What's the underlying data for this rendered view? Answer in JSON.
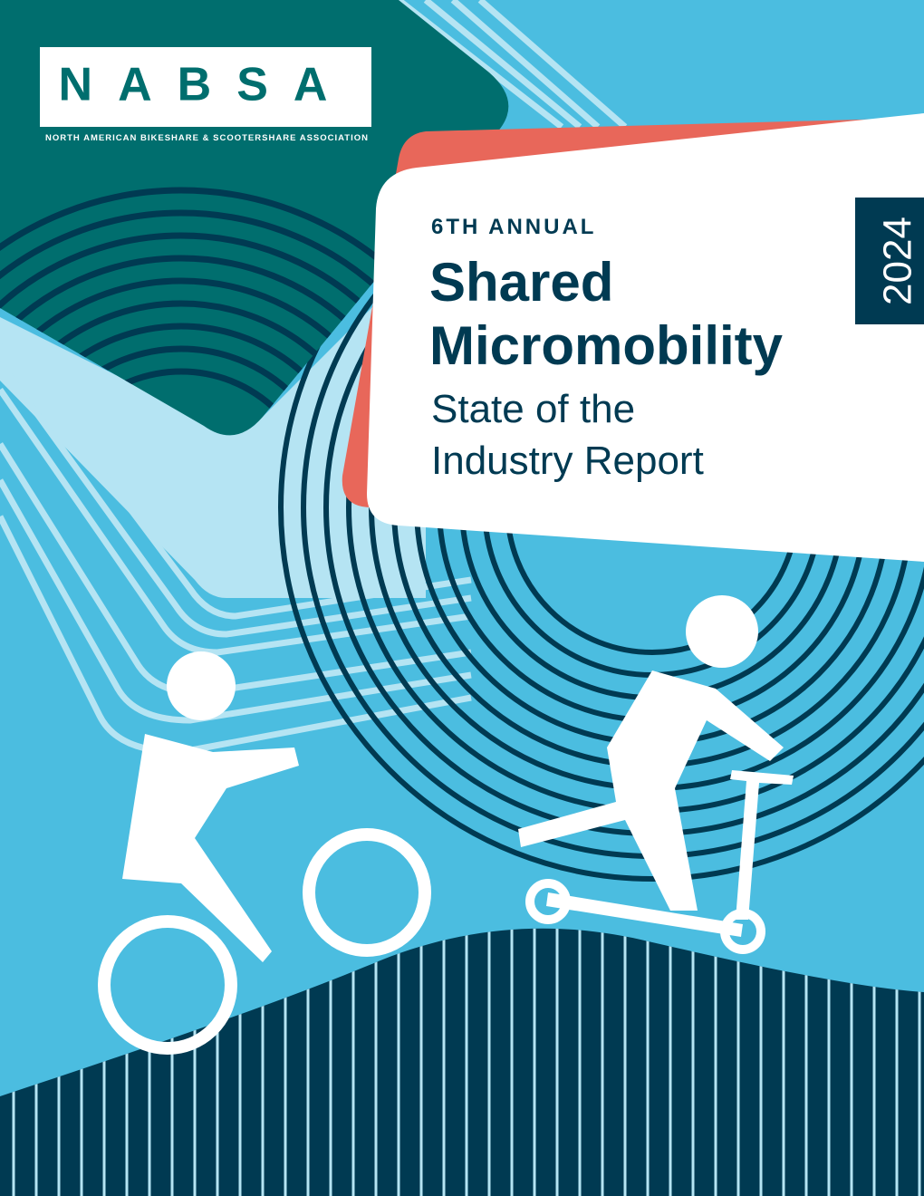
{
  "logo": {
    "name": "NABSA",
    "full_name": "NORTH AMERICAN BIKESHARE & SCOOTERSHARE ASSOCIATION"
  },
  "cover": {
    "edition": "6TH ANNUAL",
    "title_lines": [
      "Shared",
      "Micromobility"
    ],
    "subtitle_lines": [
      "State of the",
      "Industry Report"
    ],
    "year": "2024"
  }
}
